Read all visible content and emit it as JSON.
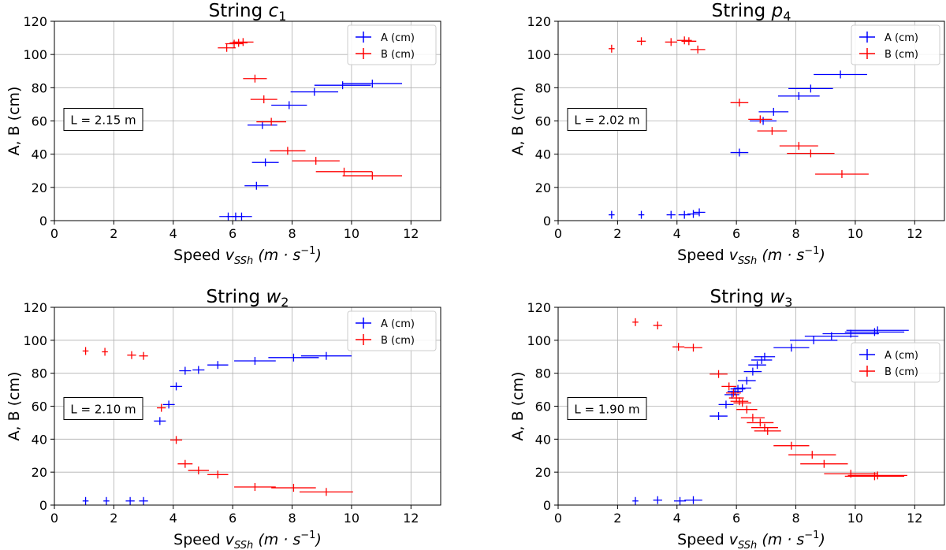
{
  "colors": {
    "A": "#0000ff",
    "B": "#ff0000",
    "grid": "#b0b0b0"
  },
  "chart_data": [
    {
      "type": "scatter",
      "title_prefix": "String ",
      "title_var": "c",
      "title_sub": "1",
      "xlabel_prefix": "Speed ",
      "xlabel_var": "v",
      "xlabel_sub": "SSh",
      "xlabel_unit": "(m · s",
      "xlabel_exp": "−1",
      "xlabel_close": ")",
      "ylabel": "A, B (cm)",
      "xlim": [
        0,
        13
      ],
      "ylim": [
        0,
        120
      ],
      "xticks": [
        0,
        2,
        4,
        6,
        8,
        10,
        12
      ],
      "yticks": [
        0,
        20,
        40,
        60,
        80,
        100,
        120
      ],
      "grid": true,
      "legend_position": "top-right",
      "annotation": "L = 2.15 m",
      "series": [
        {
          "name": "A (cm)",
          "points": [
            [
              5.85,
              2.5,
              0.3
            ],
            [
              6.1,
              2.5,
              0.3
            ],
            [
              6.3,
              2.5,
              0.35
            ],
            [
              6.8,
              21,
              0.4
            ],
            [
              7.1,
              35,
              0.45
            ],
            [
              7.0,
              57.5,
              0.5
            ],
            [
              7.9,
              69.5,
              0.6
            ],
            [
              8.75,
              77.5,
              0.8
            ],
            [
              9.7,
              81.5,
              0.95
            ],
            [
              10.7,
              82.5,
              1.0
            ]
          ]
        },
        {
          "name": "B (cm)",
          "points": [
            [
              5.8,
              104,
              0.3
            ],
            [
              6.05,
              106.5,
              0.3
            ],
            [
              6.2,
              107,
              0.3
            ],
            [
              6.35,
              107.5,
              0.35
            ],
            [
              6.75,
              85.5,
              0.4
            ],
            [
              7.05,
              73,
              0.45
            ],
            [
              7.3,
              59.5,
              0.5
            ],
            [
              7.85,
              42,
              0.6
            ],
            [
              8.8,
              36,
              0.8
            ],
            [
              9.75,
              29.5,
              0.95
            ],
            [
              10.7,
              27,
              1.0
            ]
          ]
        }
      ]
    },
    {
      "type": "scatter",
      "title_prefix": "String ",
      "title_var": "p",
      "title_sub": "4",
      "xlabel_prefix": "Speed ",
      "xlabel_var": "v",
      "xlabel_sub": "SSh",
      "xlabel_unit": "(m · s",
      "xlabel_exp": "−1",
      "xlabel_close": ")",
      "ylabel": "A, B (cm)",
      "xlim": [
        0,
        13
      ],
      "ylim": [
        0,
        120
      ],
      "xticks": [
        0,
        2,
        4,
        6,
        8,
        10,
        12
      ],
      "yticks": [
        0,
        20,
        40,
        60,
        80,
        100,
        120
      ],
      "grid": true,
      "legend_position": "top-right",
      "annotation": "L = 2.02 m",
      "series": [
        {
          "name": "A (cm)",
          "points": [
            [
              1.8,
              3.5,
              0.1
            ],
            [
              2.8,
              3.5,
              0.1
            ],
            [
              3.8,
              3.5,
              0.15
            ],
            [
              4.25,
              3.5,
              0.2
            ],
            [
              4.55,
              4,
              0.2
            ],
            [
              4.75,
              5,
              0.2
            ],
            [
              6.1,
              41,
              0.3
            ],
            [
              6.9,
              60,
              0.45
            ],
            [
              7.25,
              65.5,
              0.5
            ],
            [
              8.1,
              75,
              0.7
            ],
            [
              8.5,
              79.5,
              0.75
            ],
            [
              9.5,
              88,
              0.9
            ]
          ]
        },
        {
          "name": "B (cm)",
          "points": [
            [
              1.8,
              103.5,
              0.1
            ],
            [
              2.8,
              108,
              0.15
            ],
            [
              3.8,
              107.5,
              0.2
            ],
            [
              4.25,
              108.5,
              0.25
            ],
            [
              4.4,
              108,
              0.25
            ],
            [
              4.7,
              103,
              0.25
            ],
            [
              6.1,
              71,
              0.3
            ],
            [
              6.8,
              61,
              0.4
            ],
            [
              7.2,
              54,
              0.5
            ],
            [
              8.1,
              45,
              0.65
            ],
            [
              8.5,
              40.5,
              0.8
            ],
            [
              9.55,
              28,
              0.9
            ]
          ]
        }
      ]
    },
    {
      "type": "scatter",
      "title_prefix": "String ",
      "title_var": "w",
      "title_sub": "2",
      "xlabel_prefix": "Speed ",
      "xlabel_var": "v",
      "xlabel_sub": "SSh",
      "xlabel_unit": "(m · s",
      "xlabel_exp": "−1",
      "xlabel_close": ")",
      "ylabel": "A, B (cm)",
      "xlim": [
        0,
        13
      ],
      "ylim": [
        0,
        120
      ],
      "xticks": [
        0,
        2,
        4,
        6,
        8,
        10,
        12
      ],
      "yticks": [
        0,
        20,
        40,
        60,
        80,
        100,
        120
      ],
      "grid": true,
      "legend_position": "top-right",
      "annotation": "L = 2.10 m",
      "series": [
        {
          "name": "A (cm)",
          "points": [
            [
              1.05,
              2.5,
              0.1
            ],
            [
              1.75,
              2.5,
              0.1
            ],
            [
              2.55,
              2.5,
              0.15
            ],
            [
              3.0,
              2.5,
              0.15
            ],
            [
              3.55,
              51,
              0.2
            ],
            [
              3.85,
              61,
              0.2
            ],
            [
              4.1,
              72,
              0.2
            ],
            [
              4.4,
              81.5,
              0.2
            ],
            [
              4.85,
              82,
              0.2
            ],
            [
              5.5,
              85,
              0.35
            ],
            [
              6.75,
              87.5,
              0.7
            ],
            [
              8.05,
              89.5,
              0.85
            ],
            [
              9.15,
              90.5,
              0.85
            ]
          ]
        },
        {
          "name": "B (cm)",
          "points": [
            [
              1.05,
              93.5,
              0.1
            ],
            [
              1.7,
              93,
              0.1
            ],
            [
              2.6,
              91,
              0.15
            ],
            [
              3.0,
              90.5,
              0.15
            ],
            [
              3.6,
              59,
              0.15
            ],
            [
              4.1,
              39.5,
              0.2
            ],
            [
              4.4,
              25,
              0.25
            ],
            [
              4.85,
              21,
              0.35
            ],
            [
              5.5,
              18.5,
              0.35
            ],
            [
              6.75,
              11,
              0.7
            ],
            [
              8.05,
              10.5,
              0.75
            ],
            [
              9.15,
              8,
              0.9
            ]
          ]
        }
      ]
    },
    {
      "type": "scatter",
      "title_prefix": "String ",
      "title_var": "w",
      "title_sub": "3",
      "xlabel_prefix": "Speed ",
      "xlabel_var": "v",
      "xlabel_sub": "SSh",
      "xlabel_unit": "(m · s",
      "xlabel_exp": "−1",
      "xlabel_close": ")",
      "ylabel": "A, B (cm)",
      "xlim": [
        0,
        13
      ],
      "ylim": [
        0,
        120
      ],
      "xticks": [
        0,
        2,
        4,
        6,
        8,
        10,
        12
      ],
      "yticks": [
        0,
        20,
        40,
        60,
        80,
        100,
        120
      ],
      "grid": true,
      "legend_position": "center-right",
      "annotation": "L = 1.90 m",
      "series": [
        {
          "name": "A (cm)",
          "points": [
            [
              2.6,
              2.5,
              0.1
            ],
            [
              3.35,
              3,
              0.15
            ],
            [
              4.1,
              2.5,
              0.2
            ],
            [
              4.55,
              3,
              0.3
            ],
            [
              5.4,
              54,
              0.3
            ],
            [
              5.65,
              61,
              0.25
            ],
            [
              5.85,
              67,
              0.25
            ],
            [
              5.95,
              69,
              0.25
            ],
            [
              6.05,
              70.5,
              0.25
            ],
            [
              6.2,
              71,
              0.3
            ],
            [
              6.35,
              75.5,
              0.3
            ],
            [
              6.55,
              81,
              0.3
            ],
            [
              6.7,
              85,
              0.3
            ],
            [
              6.85,
              88,
              0.35
            ],
            [
              6.95,
              90,
              0.35
            ],
            [
              7.85,
              95.5,
              0.6
            ],
            [
              8.6,
              100,
              0.8
            ],
            [
              9.2,
              102.5,
              0.9
            ],
            [
              9.85,
              104,
              0.95
            ],
            [
              10.65,
              105,
              1.0
            ],
            [
              10.75,
              106,
              1.05
            ]
          ]
        },
        {
          "name": "B (cm)",
          "points": [
            [
              2.6,
              111,
              0.1
            ],
            [
              3.35,
              109,
              0.15
            ],
            [
              4.05,
              96,
              0.2
            ],
            [
              4.55,
              95.5,
              0.3
            ],
            [
              5.4,
              79.5,
              0.3
            ],
            [
              5.75,
              72,
              0.25
            ],
            [
              5.9,
              68,
              0.25
            ],
            [
              6.0,
              65,
              0.25
            ],
            [
              6.1,
              63,
              0.3
            ],
            [
              6.2,
              62,
              0.3
            ],
            [
              6.35,
              58,
              0.35
            ],
            [
              6.55,
              53,
              0.4
            ],
            [
              6.8,
              50,
              0.45
            ],
            [
              6.95,
              47,
              0.45
            ],
            [
              7.05,
              45,
              0.45
            ],
            [
              7.85,
              36,
              0.6
            ],
            [
              8.55,
              30.5,
              0.8
            ],
            [
              8.95,
              25,
              0.8
            ],
            [
              9.85,
              19,
              0.9
            ],
            [
              10.65,
              17.5,
              1.0
            ],
            [
              10.75,
              18,
              1.0
            ]
          ]
        }
      ]
    }
  ]
}
